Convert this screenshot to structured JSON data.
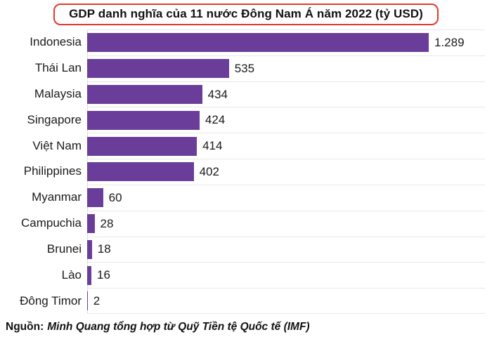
{
  "title": "GDP danh nghĩa của 11 nước Đông Nam Á năm 2022 (tỷ USD)",
  "source": {
    "prefix": "Nguồn:",
    "text": "Minh Quang tổng hợp từ Quỹ Tiền tệ Quốc tế (IMF)"
  },
  "colors": {
    "bar": "#6a3d9a",
    "title_border": "#e5372c",
    "row_separator": "#e8e8e8",
    "axis_line": "#dcdcdc",
    "text": "#1a1a1a"
  },
  "chart_data": {
    "type": "bar",
    "orientation": "horizontal",
    "title": "GDP danh nghĩa của 11 nước Đông Nam Á năm 2022 (tỷ USD)",
    "xlabel": "",
    "ylabel": "",
    "unit": "tỷ USD",
    "xlim": [
      0,
      1350
    ],
    "grid": "row-separators-only",
    "legend": "none",
    "categories": [
      "Indonesia",
      "Thái Lan",
      "Malaysia",
      "Singapore",
      "Việt Nam",
      "Philippines",
      "Myanmar",
      "Campuchia",
      "Brunei",
      "Lào",
      "Đông Timor"
    ],
    "values": [
      1289,
      535,
      434,
      424,
      414,
      402,
      60,
      28,
      18,
      16,
      2
    ],
    "value_labels": [
      "1.289",
      "535",
      "434",
      "424",
      "414",
      "402",
      "60",
      "28",
      "18",
      "16",
      "2"
    ]
  }
}
